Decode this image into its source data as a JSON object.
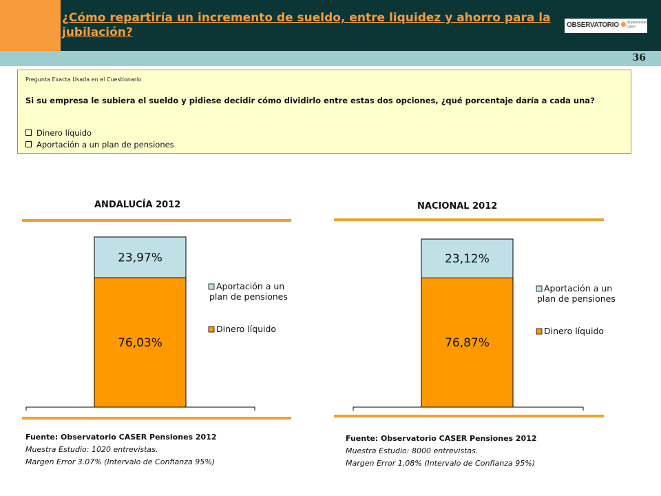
{
  "header": {
    "title": "¿Cómo repartiría un incremento de sueldo, entre liquidez y ahorro para la jubilación?",
    "logo_text": "OBSERVATORIO",
    "logo_sub": "de pensiones Caser",
    "page_number": "36"
  },
  "question": {
    "heading": "Pregunta Exacta Usada en el Cuestionario",
    "text": "Si su empresa le subiera el sueldo y pidiese decidir cómo dividirlo entre estas dos opciones, ¿qué porcentaje daría a cada una?",
    "options": [
      "Dinero líquido",
      "Aportación a un plan de pensiones"
    ]
  },
  "chart_data": [
    {
      "type": "bar",
      "stacked": true,
      "title": "ANDALUCÍA 2012",
      "categories": [
        ""
      ],
      "series": [
        {
          "name": "Dinero líquido",
          "values": [
            76.03
          ],
          "label": "76,03%",
          "color": "#ff9900"
        },
        {
          "name": "Aportación a un plan de pensiones",
          "values": [
            23.97
          ],
          "label": "23,97%",
          "color": "#bfe0e6"
        }
      ],
      "ylim": [
        0,
        100
      ],
      "legend": "right",
      "grid": false
    },
    {
      "type": "bar",
      "stacked": true,
      "title": "NACIONAL 2012",
      "categories": [
        ""
      ],
      "series": [
        {
          "name": "Dinero líquido",
          "values": [
            76.87
          ],
          "label": "76,87%",
          "color": "#ff9900"
        },
        {
          "name": "Aportación a un plan de pensiones",
          "values": [
            23.12
          ],
          "label": "23,12%",
          "color": "#bfe0e6"
        }
      ],
      "ylim": [
        0,
        100
      ],
      "legend": "right",
      "grid": false
    }
  ],
  "legend_labels": {
    "pension_line1": "Aportación a un",
    "pension_line2": "plan de pensiones",
    "liquid": "Dinero líquido"
  },
  "sources": [
    {
      "title": "Fuente: Observatorio CASER Pensiones 2012",
      "sample": "Muestra Estudio: 1020 entrevistas.",
      "error": "Margen Error 3.07% (Intervalo de Confianza 95%)"
    },
    {
      "title": "Fuente: Observatorio CASER Pensiones 2012",
      "sample": "Muestra Estudio: 8000 entrevistas.",
      "error": "Margen Error 1,08% (Intervalo de Confianza 95%)"
    }
  ],
  "colors": {
    "accent_orange": "#f79b3c",
    "header_dark": "#0c3535",
    "band": "#9dcdce",
    "question_bg": "#ffffcc"
  }
}
